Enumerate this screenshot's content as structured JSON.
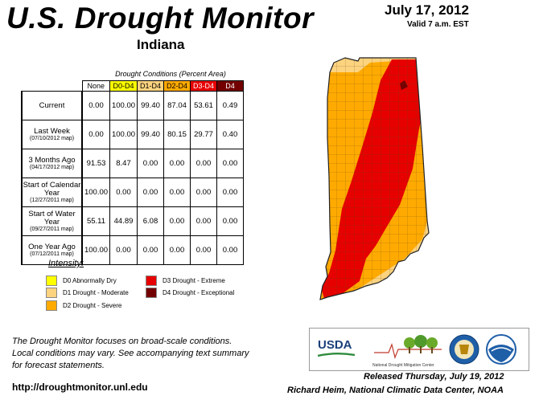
{
  "header": {
    "title": "U.S. Drought Monitor",
    "state": "Indiana",
    "date": "July 17, 2012",
    "valid": "Valid 7 a.m. EST"
  },
  "table": {
    "caption": "Drought Conditions (Percent Area)",
    "columns": [
      "None",
      "D0-D4",
      "D1-D4",
      "D2-D4",
      "D3-D4",
      "D4"
    ],
    "column_colors": [
      "#ffffff",
      "#ffff00",
      "#fcd37f",
      "#ffaa00",
      "#e60000",
      "#730000"
    ],
    "rows": [
      {
        "label": "Current",
        "sub": "",
        "values": [
          "0.00",
          "100.00",
          "99.40",
          "87.04",
          "53.61",
          "0.49"
        ]
      },
      {
        "label": "Last Week",
        "sub": "(07/10/2012 map)",
        "values": [
          "0.00",
          "100.00",
          "99.40",
          "80.15",
          "29.77",
          "0.40"
        ]
      },
      {
        "label": "3 Months Ago",
        "sub": "(04/17/2012 map)",
        "values": [
          "91.53",
          "8.47",
          "0.00",
          "0.00",
          "0.00",
          "0.00"
        ]
      },
      {
        "label": "Start of Calendar Year",
        "sub": "(12/27/2011 map)",
        "values": [
          "100.00",
          "0.00",
          "0.00",
          "0.00",
          "0.00",
          "0.00"
        ]
      },
      {
        "label": "Start of Water Year",
        "sub": "(09/27/2011 map)",
        "values": [
          "55.11",
          "44.89",
          "6.08",
          "0.00",
          "0.00",
          "0.00"
        ]
      },
      {
        "label": "One Year Ago",
        "sub": "(07/12/2011 map)",
        "values": [
          "100.00",
          "0.00",
          "0.00",
          "0.00",
          "0.00",
          "0.00"
        ]
      }
    ]
  },
  "legend": {
    "title": "Intensity:",
    "items": [
      {
        "label": "D0 Abnormally Dry",
        "color": "#ffff00"
      },
      {
        "label": "D1 Drought - Moderate",
        "color": "#fcd37f"
      },
      {
        "label": "D2 Drought - Severe",
        "color": "#ffaa00"
      },
      {
        "label": "D3 Drought - Extreme",
        "color": "#e60000"
      },
      {
        "label": "D4 Drought - Exceptional",
        "color": "#730000"
      }
    ]
  },
  "footer": {
    "note_1": "The Drought Monitor focuses on broad-scale conditions.",
    "note_2": "Local conditions may vary. See accompanying text summary",
    "note_3": "for forecast statements.",
    "url": "http://droughtmonitor.unl.edu",
    "released": "Released Thursday, July 19, 2012",
    "author": "Richard Heim, National Climatic Data Center, NOAA"
  },
  "logos": {
    "usda": "USDA",
    "ndmc": "National Drought Mitigation Center"
  }
}
